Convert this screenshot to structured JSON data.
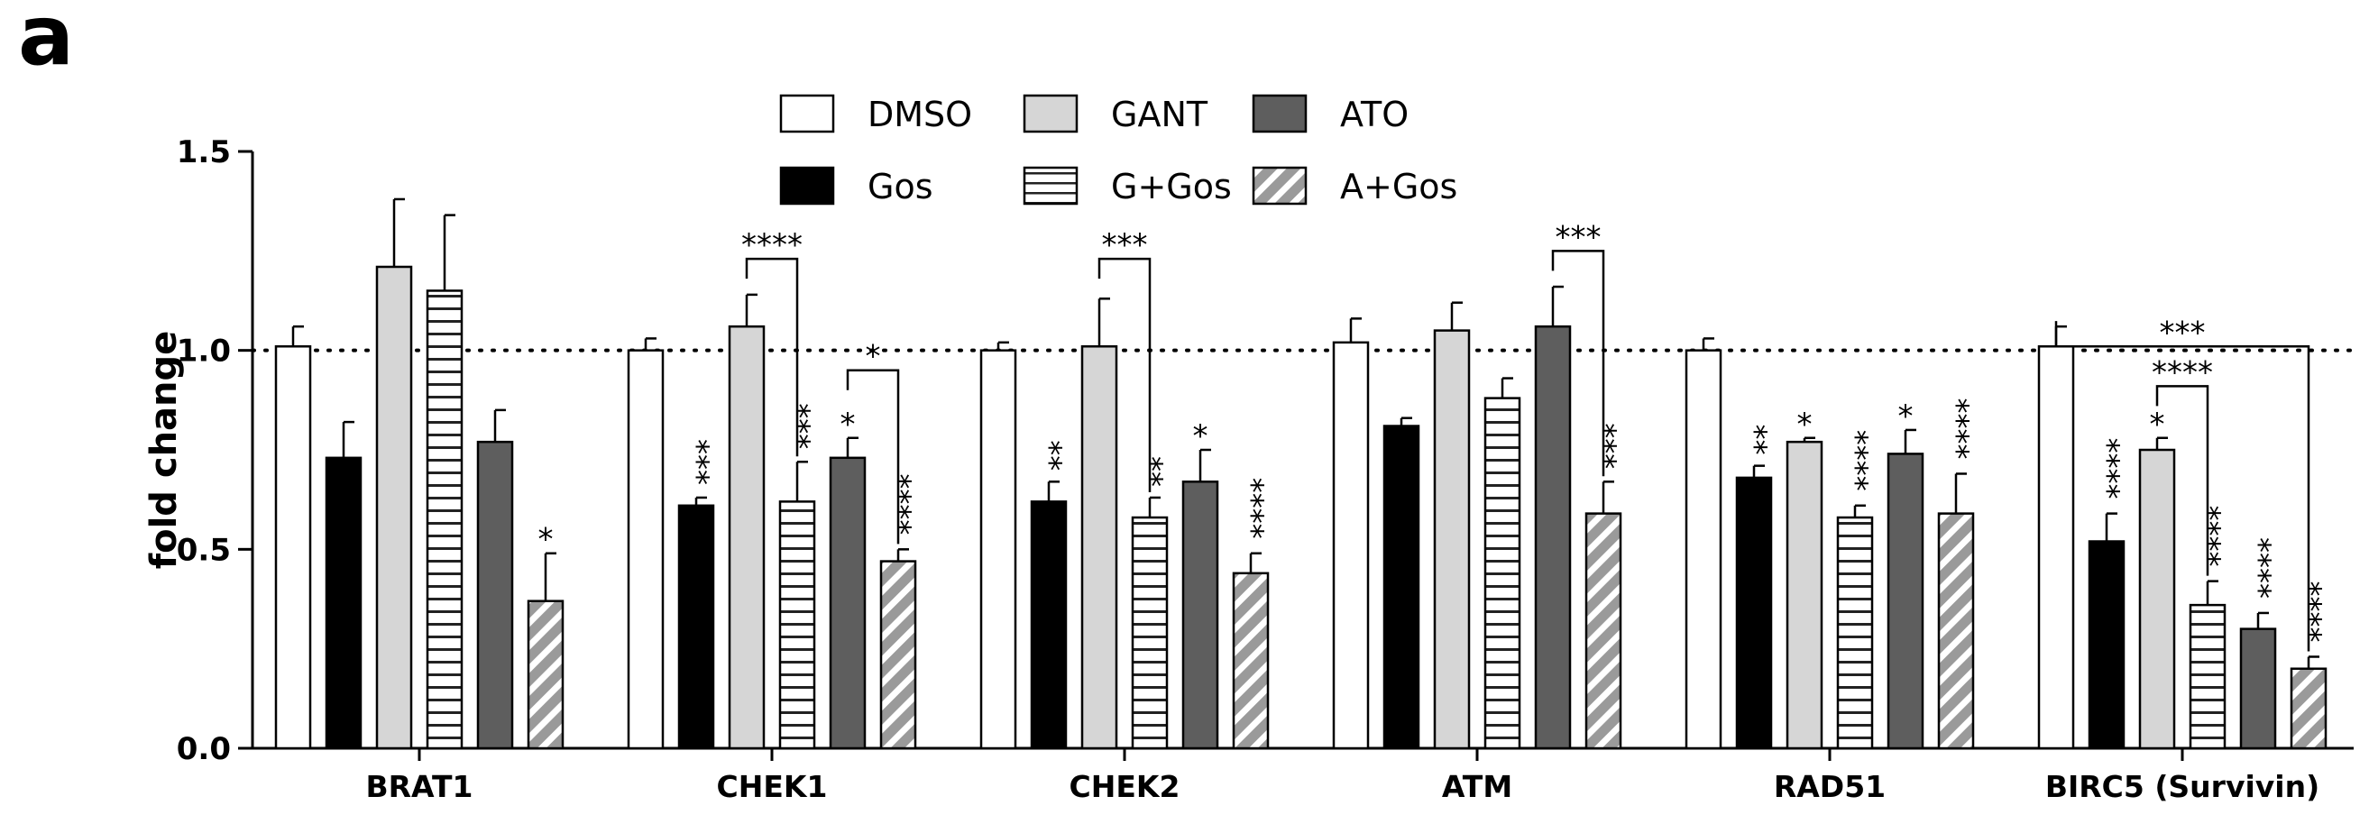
{
  "panel_label": "a",
  "colors": {
    "DMSO": "#ffffff",
    "Gos": "#000000",
    "GANT": "#d6d6d6",
    "G+Gos": "#ffffff",
    "ATO": "#5e5e5e",
    "A+Gos": "#9a9a9a"
  },
  "chart_data": {
    "type": "bar",
    "title": "",
    "xlabel": "",
    "ylabel": "fold change",
    "ylim": [
      0,
      1.5
    ],
    "yticks": [
      0.0,
      0.5,
      1.0,
      1.5
    ],
    "ytick_labels": [
      "0.0",
      "0.5",
      "1.0",
      "1.5"
    ],
    "reference_line": 1.0,
    "legend_position": "top-center",
    "categories": [
      "BRAT1",
      "CHEK1",
      "CHEK2",
      "ATM",
      "RAD51",
      "BIRC5 (Survivin)"
    ],
    "series": [
      {
        "name": "DMSO",
        "pattern": "white",
        "values": [
          1.01,
          1.0,
          1.0,
          1.02,
          1.0,
          1.01
        ],
        "errors": [
          0.05,
          0.03,
          0.02,
          0.06,
          0.03,
          0.05
        ],
        "stars": [
          "",
          "",
          "",
          "",
          "",
          ""
        ]
      },
      {
        "name": "Gos",
        "pattern": "black",
        "values": [
          0.73,
          0.61,
          0.62,
          0.81,
          0.68,
          0.52
        ],
        "errors": [
          0.09,
          0.02,
          0.05,
          0.02,
          0.03,
          0.07
        ],
        "stars": [
          "",
          "***",
          "**",
          "",
          "**",
          "****"
        ]
      },
      {
        "name": "GANT",
        "pattern": "lightgray",
        "values": [
          1.21,
          1.06,
          1.01,
          1.05,
          0.77,
          0.75
        ],
        "errors": [
          0.17,
          0.08,
          0.12,
          0.07,
          0.01,
          0.03
        ],
        "stars": [
          "",
          "",
          "",
          "",
          "*",
          "*"
        ]
      },
      {
        "name": "G+Gos",
        "pattern": "horizontal-stripes",
        "values": [
          1.15,
          0.62,
          0.58,
          0.88,
          0.58,
          0.36
        ],
        "errors": [
          0.19,
          0.1,
          0.05,
          0.05,
          0.03,
          0.06
        ],
        "stars": [
          "",
          "***",
          "**",
          "",
          "****",
          "****"
        ]
      },
      {
        "name": "ATO",
        "pattern": "darkgray",
        "values": [
          0.77,
          0.73,
          0.67,
          1.06,
          0.74,
          0.3
        ],
        "errors": [
          0.08,
          0.05,
          0.08,
          0.1,
          0.06,
          0.04
        ],
        "stars": [
          "",
          "*",
          "*",
          "",
          "*",
          "****"
        ]
      },
      {
        "name": "A+Gos",
        "pattern": "diagonal-stripes",
        "values": [
          0.37,
          0.47,
          0.44,
          0.59,
          0.59,
          0.2
        ],
        "errors": [
          0.12,
          0.03,
          0.05,
          0.08,
          0.1,
          0.03
        ],
        "stars": [
          "*",
          "****",
          "****",
          "***",
          "****",
          "****"
        ]
      }
    ],
    "comparisons": [
      {
        "category": 1,
        "from": "GANT",
        "to": "G+Gos",
        "label": "****"
      },
      {
        "category": 1,
        "from": "ATO",
        "to": "A+Gos",
        "label": "*"
      },
      {
        "category": 2,
        "from": "GANT",
        "to": "G+Gos",
        "label": "***"
      },
      {
        "category": 3,
        "from": "ATO",
        "to": "A+Gos",
        "label": "***"
      },
      {
        "category": 5,
        "from": "DMSO",
        "to": "A+Gos",
        "label": "***"
      },
      {
        "category": 5,
        "from": "GANT",
        "to": "G+Gos",
        "label": "****"
      }
    ]
  }
}
